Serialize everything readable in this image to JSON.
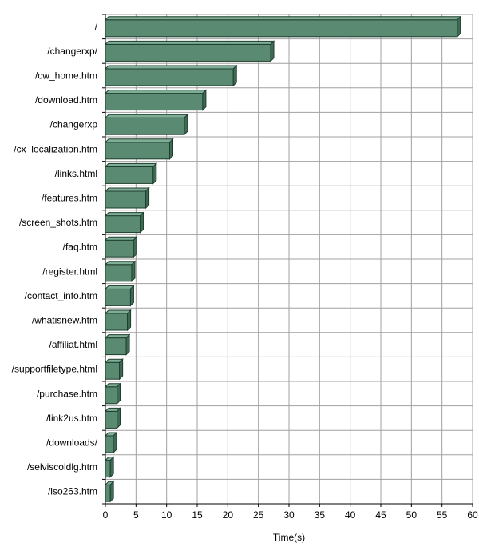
{
  "chart_data": {
    "type": "bar",
    "orientation": "horizontal",
    "style": "3d",
    "bar_color": "#5a8a72",
    "bar_color_side": "#3f6b55",
    "bar_color_top": "#7fae97",
    "grid": true,
    "categories": [
      "/",
      "/changerxp/",
      "/cw_home.htm",
      "/download.htm",
      "/changerxp",
      "/cx_localization.htm",
      "/links.html",
      "/features.htm",
      "/screen_shots.htm",
      "/faq.htm",
      "/register.html",
      "/contact_info.htm",
      "/whatisnew.htm",
      "/affiliat.html",
      "/supportfiletype.html",
      "/purchase.htm",
      "/link2us.htm",
      "/downloads/",
      "/selviscoldlg.htm",
      "/iso263.htm"
    ],
    "values": [
      57.5,
      27.0,
      20.9,
      15.9,
      12.9,
      10.5,
      7.8,
      6.6,
      5.7,
      4.6,
      4.3,
      4.1,
      3.6,
      3.4,
      2.3,
      1.9,
      1.9,
      1.3,
      0.8,
      0.8
    ],
    "xlabel": "Time(s)",
    "ylabel": "",
    "xlim": [
      0,
      60
    ],
    "xticks": [
      "0",
      "5",
      "10",
      "15",
      "20",
      "25",
      "30",
      "35",
      "40",
      "45",
      "50",
      "55",
      "60"
    ]
  }
}
